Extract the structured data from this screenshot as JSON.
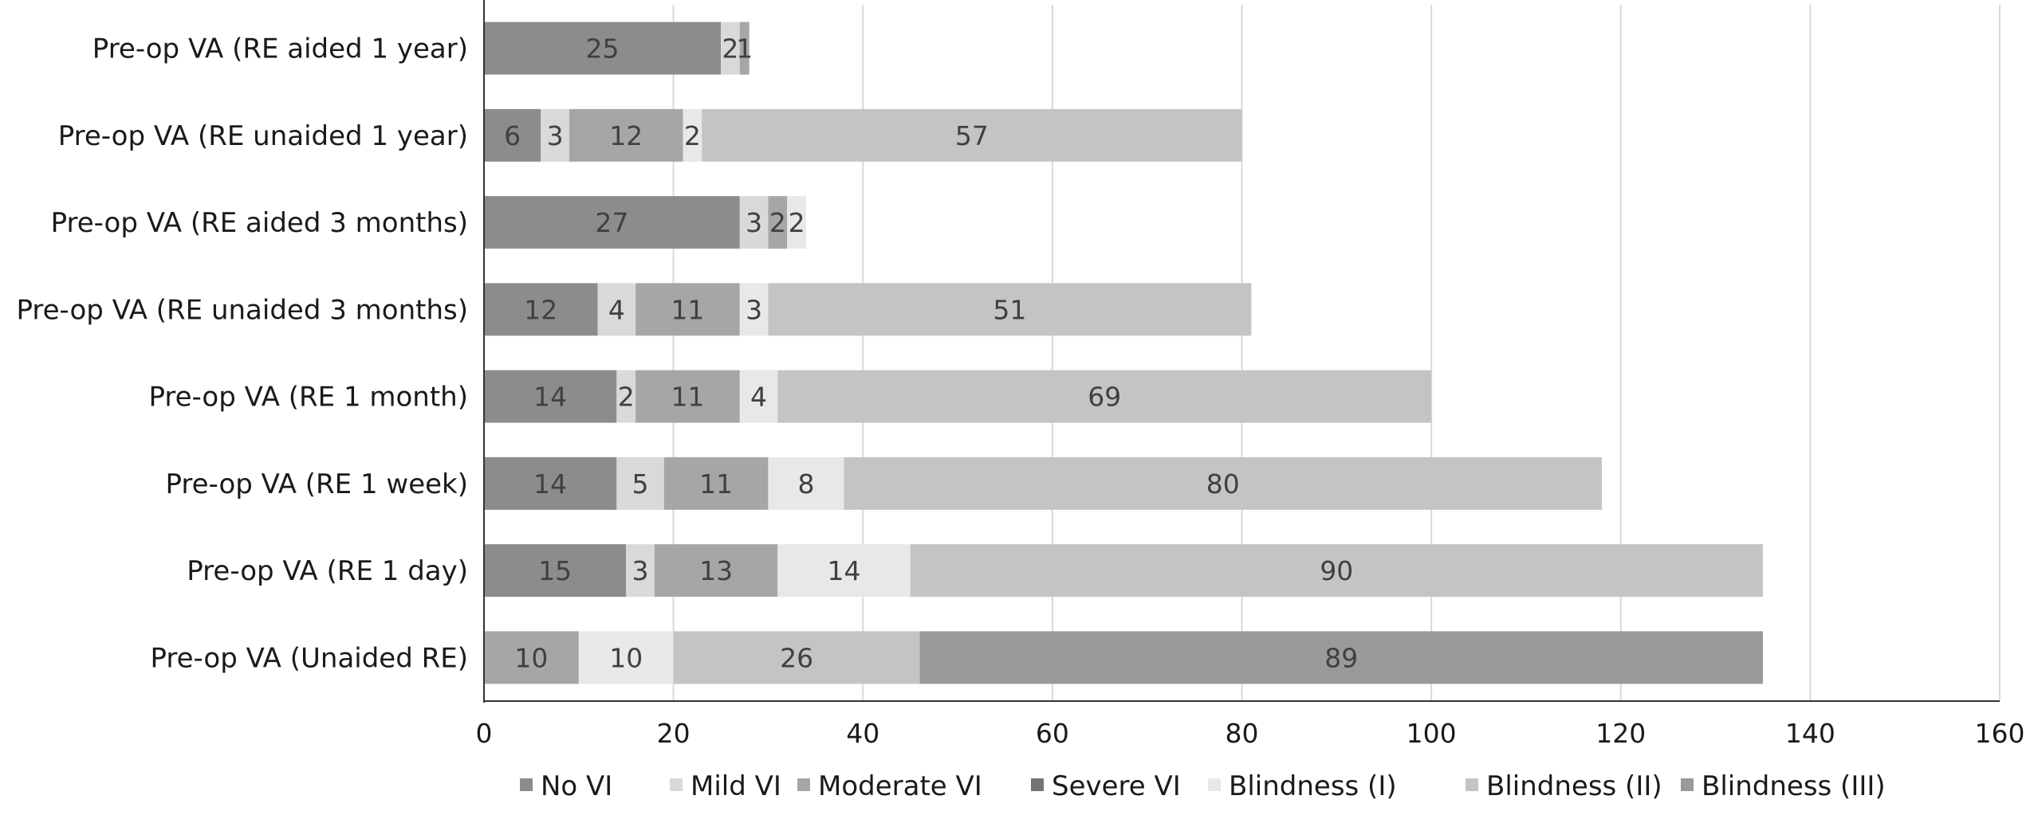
{
  "chart_data": {
    "type": "bar",
    "orientation": "horizontal",
    "stacked": true,
    "title": "",
    "xlabel": "",
    "ylabel": "",
    "xlim": [
      0,
      160
    ],
    "xticks": [
      0,
      20,
      40,
      60,
      80,
      100,
      120,
      140,
      160
    ],
    "grid": "vertical",
    "legend_position": "bottom",
    "categories": [
      "Pre-op VA (RE aided 1 year)",
      "Pre-op VA (RE unaided 1 year)",
      "Pre-op VA (RE aided 3 months)",
      "Pre-op VA (RE unaided 3 months)",
      "Pre-op VA (RE 1 month)",
      "Pre-op VA (RE 1 week)",
      "Pre-op VA (RE 1 day)",
      "Pre-op VA (Unaided RE)"
    ],
    "series": [
      {
        "name": "No VI",
        "color": "#8c8c8c",
        "values": [
          25,
          6,
          27,
          12,
          14,
          14,
          15,
          0
        ]
      },
      {
        "name": "Mild VI",
        "color": "#d9d9d9",
        "values": [
          2,
          3,
          3,
          4,
          2,
          5,
          3,
          0
        ]
      },
      {
        "name": "Moderate VI",
        "color": "#a6a6a6",
        "values": [
          1,
          12,
          2,
          11,
          11,
          11,
          13,
          10
        ]
      },
      {
        "name": "Severe VI",
        "color": "#737373",
        "values": [
          0,
          0,
          0,
          0,
          0,
          0,
          0,
          0
        ]
      },
      {
        "name": "Blindness (I)",
        "color": "#e8e8e8",
        "values": [
          0,
          2,
          2,
          3,
          4,
          8,
          14,
          10
        ]
      },
      {
        "name": "Blindness (II)",
        "color": "#c4c4c4",
        "values": [
          0,
          57,
          0,
          51,
          69,
          80,
          90,
          26
        ]
      },
      {
        "name": "Blindness (III)",
        "color": "#9a9a9a",
        "values": [
          0,
          0,
          0,
          0,
          0,
          0,
          0,
          89
        ]
      }
    ]
  }
}
